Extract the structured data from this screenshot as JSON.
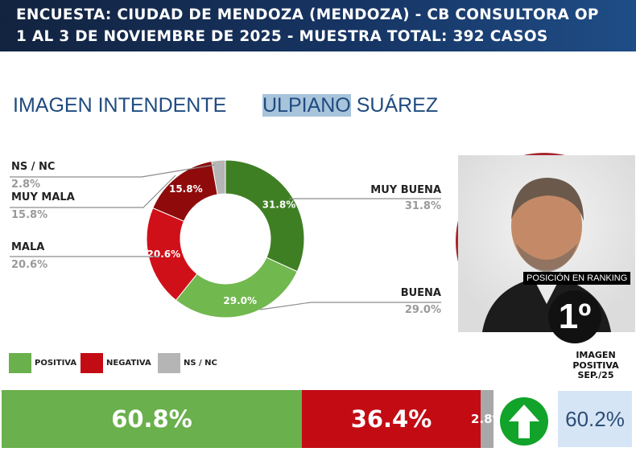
{
  "header": {
    "line1": "ENCUESTA: CIUDAD DE MENDOZA (MENDOZA) - CB CONSULTORA OP",
    "line2": "1 AL 3 DE NOVIEMBRE DE 2025 - MUESTRA TOTAL: 392 CASOS"
  },
  "subtitle": {
    "label": "IMAGEN INTENDENTE",
    "first_name": "ULPIANO",
    "last_name": "SUÁREZ"
  },
  "candidate": {
    "ranking_label": "POSICIÓN EN RANKING",
    "ranking_value": "1º"
  },
  "chart_data": [
    {
      "type": "pie",
      "variant": "donut",
      "title": "",
      "slices": [
        {
          "name": "MUY BUENA",
          "value": 31.8,
          "label": "31.8%",
          "color": "#3f7f24"
        },
        {
          "name": "BUENA",
          "value": 29.0,
          "label": "29.0%",
          "color": "#71b84f"
        },
        {
          "name": "MALA",
          "value": 20.6,
          "label": "20.6%",
          "color": "#d01019"
        },
        {
          "name": "MUY MALA",
          "value": 15.8,
          "label": "15.8%",
          "color": "#8f0b0b"
        },
        {
          "name": "NS / NC",
          "value": 2.8,
          "label": "2.8%",
          "color": "#b5b5b5"
        }
      ]
    },
    {
      "type": "bar",
      "orientation": "horizontal-stacked",
      "series": [
        {
          "name": "POSITIVA",
          "value": 60.8,
          "label": "60.8%",
          "color": "#6ab04c"
        },
        {
          "name": "NEGATIVA",
          "value": 36.4,
          "label": "36.4%",
          "color": "#c30b14"
        },
        {
          "name": "NS / NC",
          "value": 2.8,
          "label": "2.8%",
          "color": "#a8a8a8"
        }
      ],
      "legend_position": "top-left"
    }
  ],
  "callouts": {
    "ns_nc": {
      "name": "NS / NC",
      "pct": "2.8%"
    },
    "muy_mala": {
      "name": "MUY MALA",
      "pct": "15.8%"
    },
    "mala": {
      "name": "MALA",
      "pct": "20.6%"
    },
    "muy_buena": {
      "name": "MUY BUENA",
      "pct": "31.8%"
    },
    "buena": {
      "name": "BUENA",
      "pct": "29.0%"
    }
  },
  "legend": {
    "positiva": "POSITIVA",
    "negativa": "NEGATIVA",
    "ns_nc": "NS / NC"
  },
  "previous": {
    "title_line1": "IMAGEN",
    "title_line2": "POSITIVA",
    "title_line3": "SEP./25",
    "value": "60.2%"
  },
  "trend": {
    "direction": "up",
    "icon": "up-arrow-icon",
    "color": "#11a32a"
  }
}
